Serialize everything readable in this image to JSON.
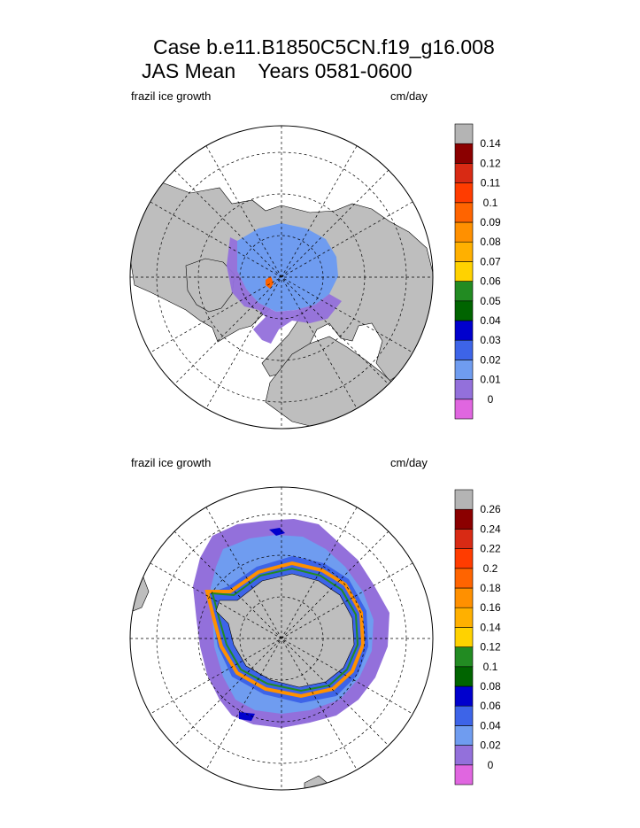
{
  "title": {
    "line1": "Case b.e11.B1850C5CN.f19_g16.008",
    "line2": "JAS Mean    Years 0581-0600"
  },
  "colors": {
    "land": "#bebebe",
    "ocean": "#ffffff",
    "scale": [
      "#e066e0",
      "#9370db",
      "#6f9cf0",
      "#3d64e8",
      "#0000cd",
      "#006400",
      "#228b22",
      "#ffd200",
      "#ffb000",
      "#ff9000",
      "#ff6400",
      "#ff3c00",
      "#d82a14",
      "#8b0000",
      "#b4b4b4"
    ]
  },
  "panels": [
    {
      "id": "north",
      "field_label": "frazil ice growth",
      "units": "cm/day",
      "colorbar_labels": [
        "0",
        "0.01",
        "0.02",
        "0.03",
        "0.04",
        "0.05",
        "0.06",
        "0.07",
        "0.08",
        "0.09",
        "0.1",
        "0.11",
        "0.12",
        "0.14"
      ]
    },
    {
      "id": "south",
      "field_label": "frazil ice growth",
      "units": "cm/day",
      "colorbar_labels": [
        "0",
        "0.02",
        "0.04",
        "0.06",
        "0.08",
        "0.1",
        "0.12",
        "0.14",
        "0.16",
        "0.18",
        "0.2",
        "0.22",
        "0.24",
        "0.26"
      ]
    }
  ]
}
